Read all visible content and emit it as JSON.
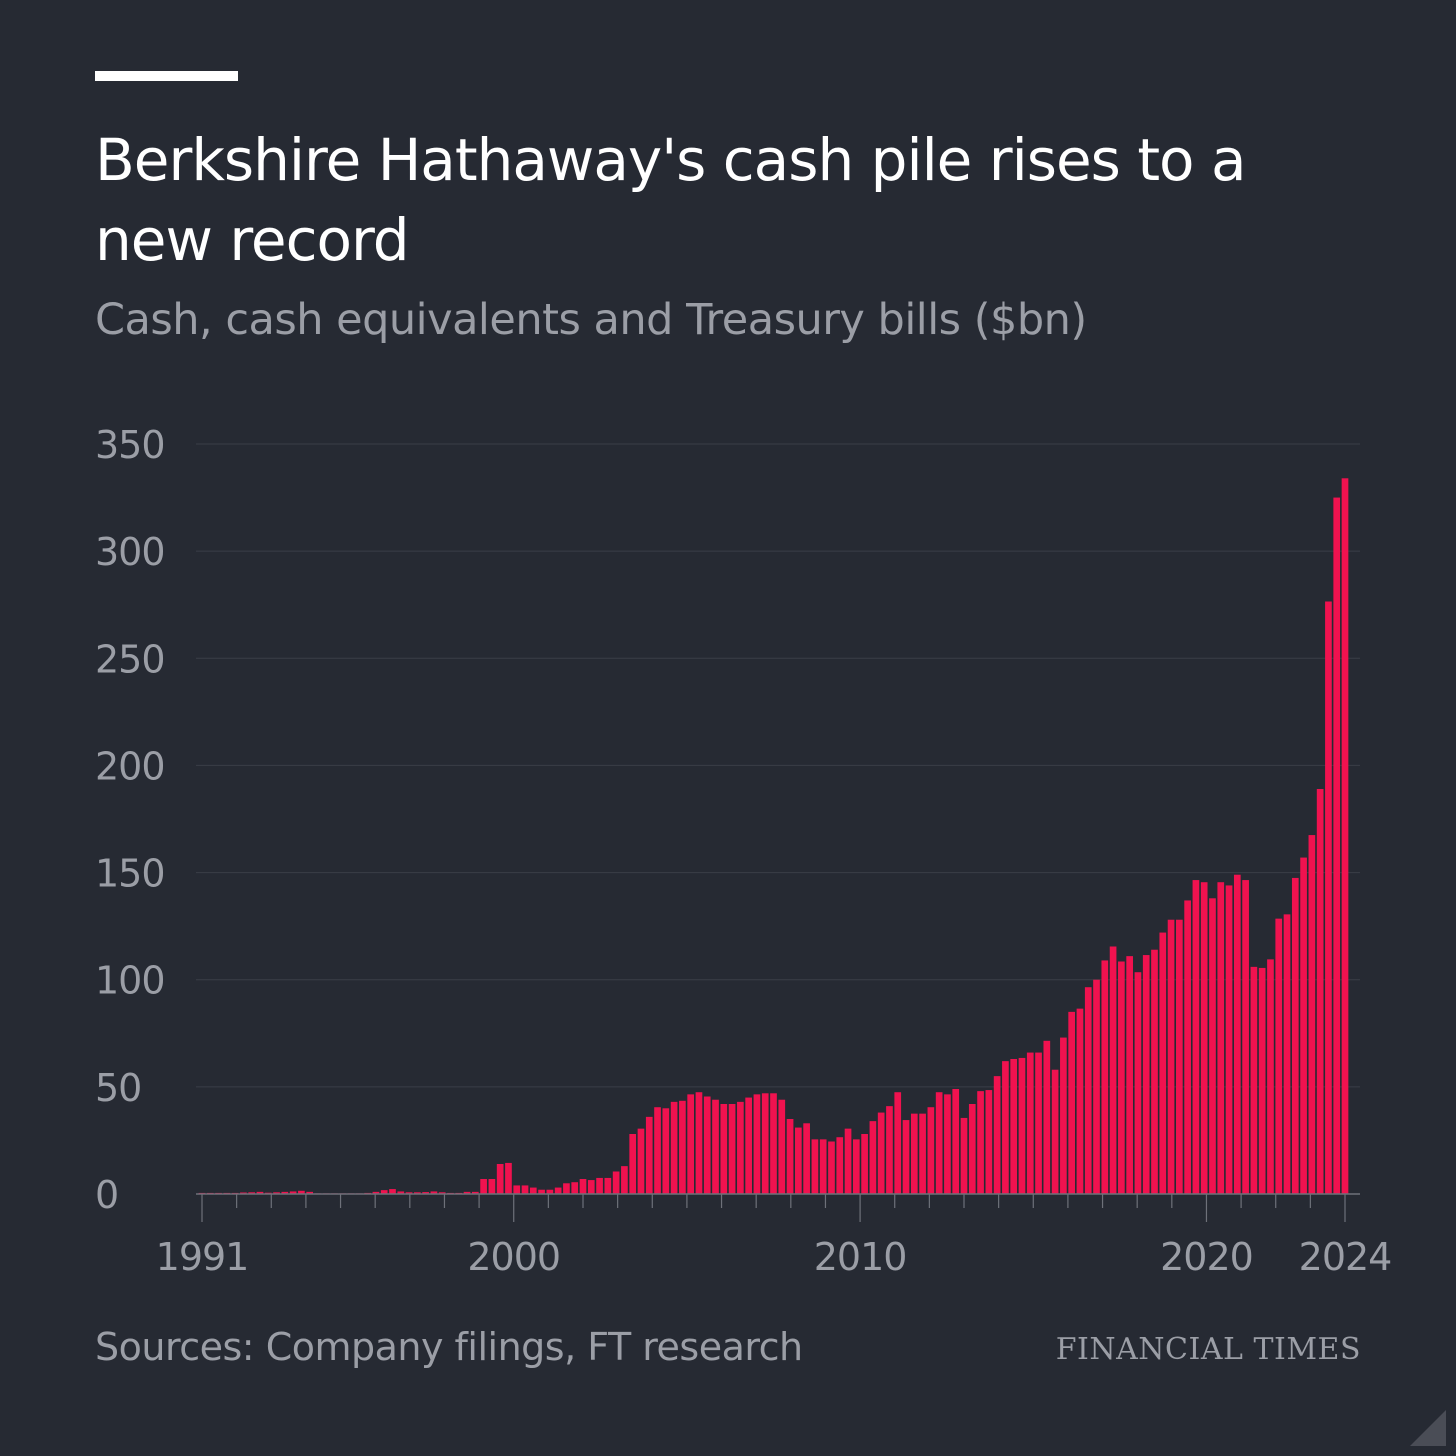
{
  "header": {
    "title": "Berkshire Hathaway's cash pile rises to a new record",
    "subtitle": "Cash, cash equivalents and Treasury bills ($bn)"
  },
  "footer": {
    "source": "Sources: Company filings, FT research",
    "brand": "FINANCIAL TIMES"
  },
  "colors": {
    "background": "#262a33",
    "bars": "#f0124f",
    "grid": "#3a3e47",
    "text": "#9b9ea6"
  },
  "chart_data": {
    "type": "bar",
    "title": "Berkshire Hathaway's cash pile rises to a new record",
    "subtitle": "Cash, cash equivalents and Treasury bills ($bn)",
    "xlabel": "",
    "ylabel": "",
    "ylim": [
      0,
      350
    ],
    "yticks": [
      0,
      50,
      100,
      150,
      200,
      250,
      300,
      350
    ],
    "xlim": [
      1991,
      2024
    ],
    "xticks": [
      1991,
      2000,
      2010,
      2020,
      2024
    ],
    "frequency": "quarterly",
    "grid": true,
    "legend": "none",
    "series": [
      {
        "values": [
          0.5,
          0.5,
          0.5,
          0.5,
          0.5,
          0.7,
          0.8,
          1.0,
          0.6,
          0.8,
          1.0,
          1.2,
          1.5,
          1.0,
          0.3,
          0.3,
          0.3,
          0.3,
          0.3,
          0.3,
          0.5,
          1.0,
          1.8,
          2.3,
          1.2,
          0.8,
          0.8,
          0.9,
          1.2,
          0.8,
          0.5,
          0.5,
          1.0,
          1.0,
          7,
          7,
          14,
          14.5,
          4,
          4,
          3,
          2,
          2,
          3,
          5,
          5.5,
          7,
          6.5,
          7.5,
          7.5,
          10.5,
          13,
          28,
          30.5,
          36,
          40.5,
          40,
          43,
          43.5,
          46.5,
          47.5,
          45.5,
          44,
          42,
          42,
          43,
          45,
          46.5,
          47,
          47,
          44,
          35,
          31,
          33,
          25.5,
          25.5,
          24.5,
          26.5,
          30.5,
          25.5,
          28,
          34,
          38,
          41,
          47.5,
          34.5,
          37.5,
          37.5,
          40.5,
          47.5,
          46.5,
          49,
          35.5,
          42,
          48,
          48.5,
          55,
          62,
          63,
          63.5,
          66,
          66,
          71.5,
          58,
          73,
          85,
          86.5,
          96.5,
          100,
          109,
          115.5,
          108.5,
          111,
          103.5,
          111.5,
          114,
          122,
          128,
          128,
          137,
          146.5,
          145.5,
          138,
          145.5,
          144,
          149,
          146.5,
          106,
          105.5,
          109.5,
          128.5,
          130.5,
          147.5,
          157,
          167.5,
          189,
          276.5,
          325,
          334
        ]
      }
    ]
  }
}
